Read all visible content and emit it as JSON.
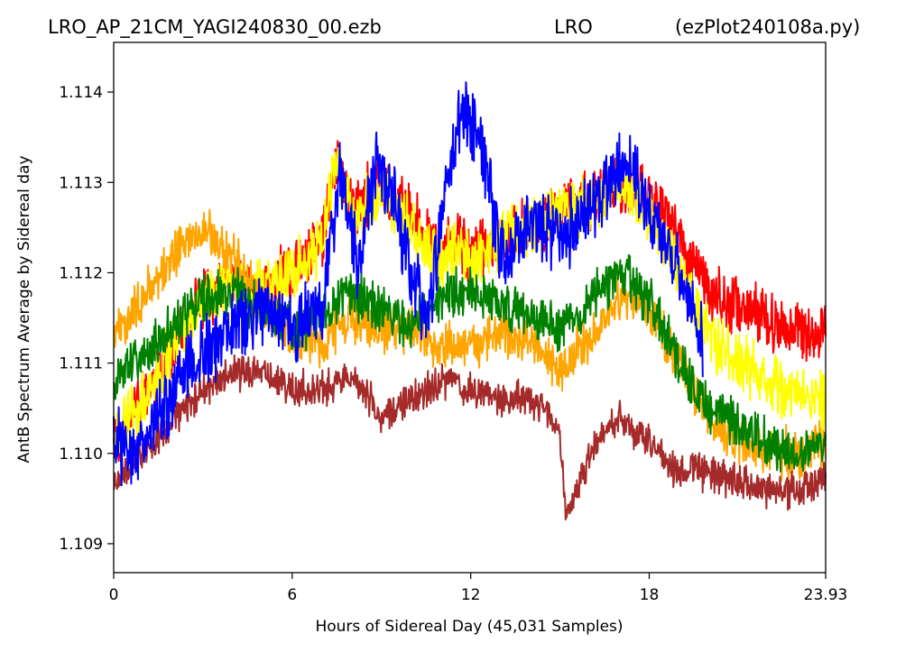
{
  "header": {
    "title_left": "LRO_AP_21CM_YAGI240830_00.ezb",
    "title_center": "LRO",
    "title_right": "(ezPlot240108a.py)"
  },
  "chart_data": {
    "type": "line",
    "xlabel": "Hours of Sidereal Day  (45,031 Samples)",
    "ylabel": "AntB Spectrum Average by Sidereal day",
    "xlim": [
      0,
      23.93
    ],
    "ylim": [
      1.10868,
      1.11455
    ],
    "x_ticks": [
      {
        "value": 0,
        "label": "0"
      },
      {
        "value": 6,
        "label": "6"
      },
      {
        "value": 12,
        "label": "12"
      },
      {
        "value": 18,
        "label": "18"
      },
      {
        "value": 23.93,
        "label": "23.93"
      }
    ],
    "y_ticks": [
      {
        "value": 1.109,
        "label": "1.109"
      },
      {
        "value": 1.11,
        "label": "1.110"
      },
      {
        "value": 1.111,
        "label": "1.111"
      },
      {
        "value": 1.112,
        "label": "1.112"
      },
      {
        "value": 1.113,
        "label": "1.113"
      },
      {
        "value": 1.114,
        "label": "1.114"
      }
    ],
    "grid": false,
    "series": [
      {
        "color": "#ff0000",
        "x": [
          0,
          1,
          2,
          3,
          4,
          5,
          6,
          7,
          7.5,
          8,
          9,
          10,
          11,
          11.5,
          12,
          13,
          14,
          15,
          16,
          17,
          18,
          19,
          20,
          21,
          22,
          23,
          23.93
        ],
        "y": [
          1.1101,
          1.1106,
          1.1112,
          1.1117,
          1.1119,
          1.1118,
          1.112,
          1.1124,
          1.1132,
          1.1127,
          1.113,
          1.1126,
          1.1122,
          1.1124,
          1.1122,
          1.1124,
          1.1125,
          1.1127,
          1.1128,
          1.113,
          1.1128,
          1.1124,
          1.1118,
          1.1116,
          1.1115,
          1.1114,
          1.1113
        ],
        "noise": 0.0005
      },
      {
        "color": "#ffff00",
        "x": [
          0,
          1,
          2,
          3,
          4,
          5,
          6,
          7,
          7.5,
          8,
          9,
          10,
          11,
          11.5,
          12,
          13,
          14,
          15,
          16,
          17,
          18,
          19,
          20,
          21,
          22,
          23,
          23.93
        ],
        "y": [
          1.1101,
          1.1106,
          1.1112,
          1.1117,
          1.1119,
          1.1118,
          1.112,
          1.1123,
          1.1133,
          1.1126,
          1.1129,
          1.1125,
          1.1121,
          1.1123,
          1.1121,
          1.1124,
          1.1125,
          1.1127,
          1.1128,
          1.113,
          1.1127,
          1.112,
          1.1113,
          1.111,
          1.1108,
          1.1107,
          1.1106
        ],
        "noise": 0.0005
      },
      {
        "color": "#ffa500",
        "x": [
          0,
          1,
          2,
          3,
          4,
          5,
          6,
          7,
          8,
          9,
          10,
          11,
          12,
          13,
          14,
          15,
          16,
          17,
          18,
          19,
          20,
          21,
          22,
          23,
          23.93
        ],
        "y": [
          1.1113,
          1.1117,
          1.1122,
          1.1125,
          1.1122,
          1.1116,
          1.1113,
          1.1112,
          1.1115,
          1.1114,
          1.1114,
          1.1112,
          1.1112,
          1.1113,
          1.1113,
          1.1109,
          1.1113,
          1.1117,
          1.1116,
          1.111,
          1.1104,
          1.1101,
          1.11,
          1.11,
          1.1101
        ],
        "noise": 0.0004
      },
      {
        "color": "#008000",
        "x": [
          0,
          1,
          2,
          3,
          4,
          5,
          6,
          7,
          8,
          9,
          10,
          11,
          12,
          13,
          14,
          15,
          16,
          17,
          18,
          19,
          20,
          21,
          22,
          23,
          23.93
        ],
        "y": [
          1.1108,
          1.1111,
          1.1114,
          1.1117,
          1.1118,
          1.1116,
          1.1114,
          1.1115,
          1.1118,
          1.1116,
          1.1114,
          1.1117,
          1.1118,
          1.1117,
          1.1115,
          1.1114,
          1.1117,
          1.112,
          1.1117,
          1.111,
          1.1105,
          1.1103,
          1.1101,
          1.11,
          1.1101
        ],
        "noise": 0.0004
      },
      {
        "color": "#a52a2a",
        "x": [
          0,
          1,
          2,
          3,
          4,
          5,
          6,
          7,
          8,
          9,
          10,
          11,
          12,
          13,
          14,
          15,
          15.2,
          16,
          17,
          18,
          19,
          20,
          21,
          22,
          23,
          23.93
        ],
        "y": [
          1.1097,
          1.11,
          1.1104,
          1.1107,
          1.1109,
          1.1109,
          1.1107,
          1.1107,
          1.1109,
          1.1104,
          1.1106,
          1.1108,
          1.1107,
          1.1106,
          1.1106,
          1.1103,
          1.1093,
          1.11,
          1.1104,
          1.1101,
          1.1098,
          1.1098,
          1.1097,
          1.1096,
          1.1096,
          1.1097
        ],
        "noise": 0.0003
      },
      {
        "color": "#0000ff",
        "x": [
          0,
          0.5,
          1,
          2,
          3,
          4,
          5,
          6,
          7,
          7.6,
          8.2,
          8.8,
          9.5,
          10.5,
          11.3,
          11.8,
          12.5,
          13,
          14,
          15,
          16,
          17,
          17.5,
          18,
          19,
          19.8
        ],
        "y": [
          1.1101,
          1.11,
          1.1102,
          1.1107,
          1.1111,
          1.1114,
          1.1116,
          1.1114,
          1.1116,
          1.1131,
          1.1121,
          1.1132,
          1.1127,
          1.1114,
          1.1132,
          1.1138,
          1.1132,
          1.1122,
          1.1126,
          1.1124,
          1.1127,
          1.1132,
          1.1131,
          1.1127,
          1.112,
          1.1113
        ],
        "noise": 0.0006
      }
    ]
  }
}
